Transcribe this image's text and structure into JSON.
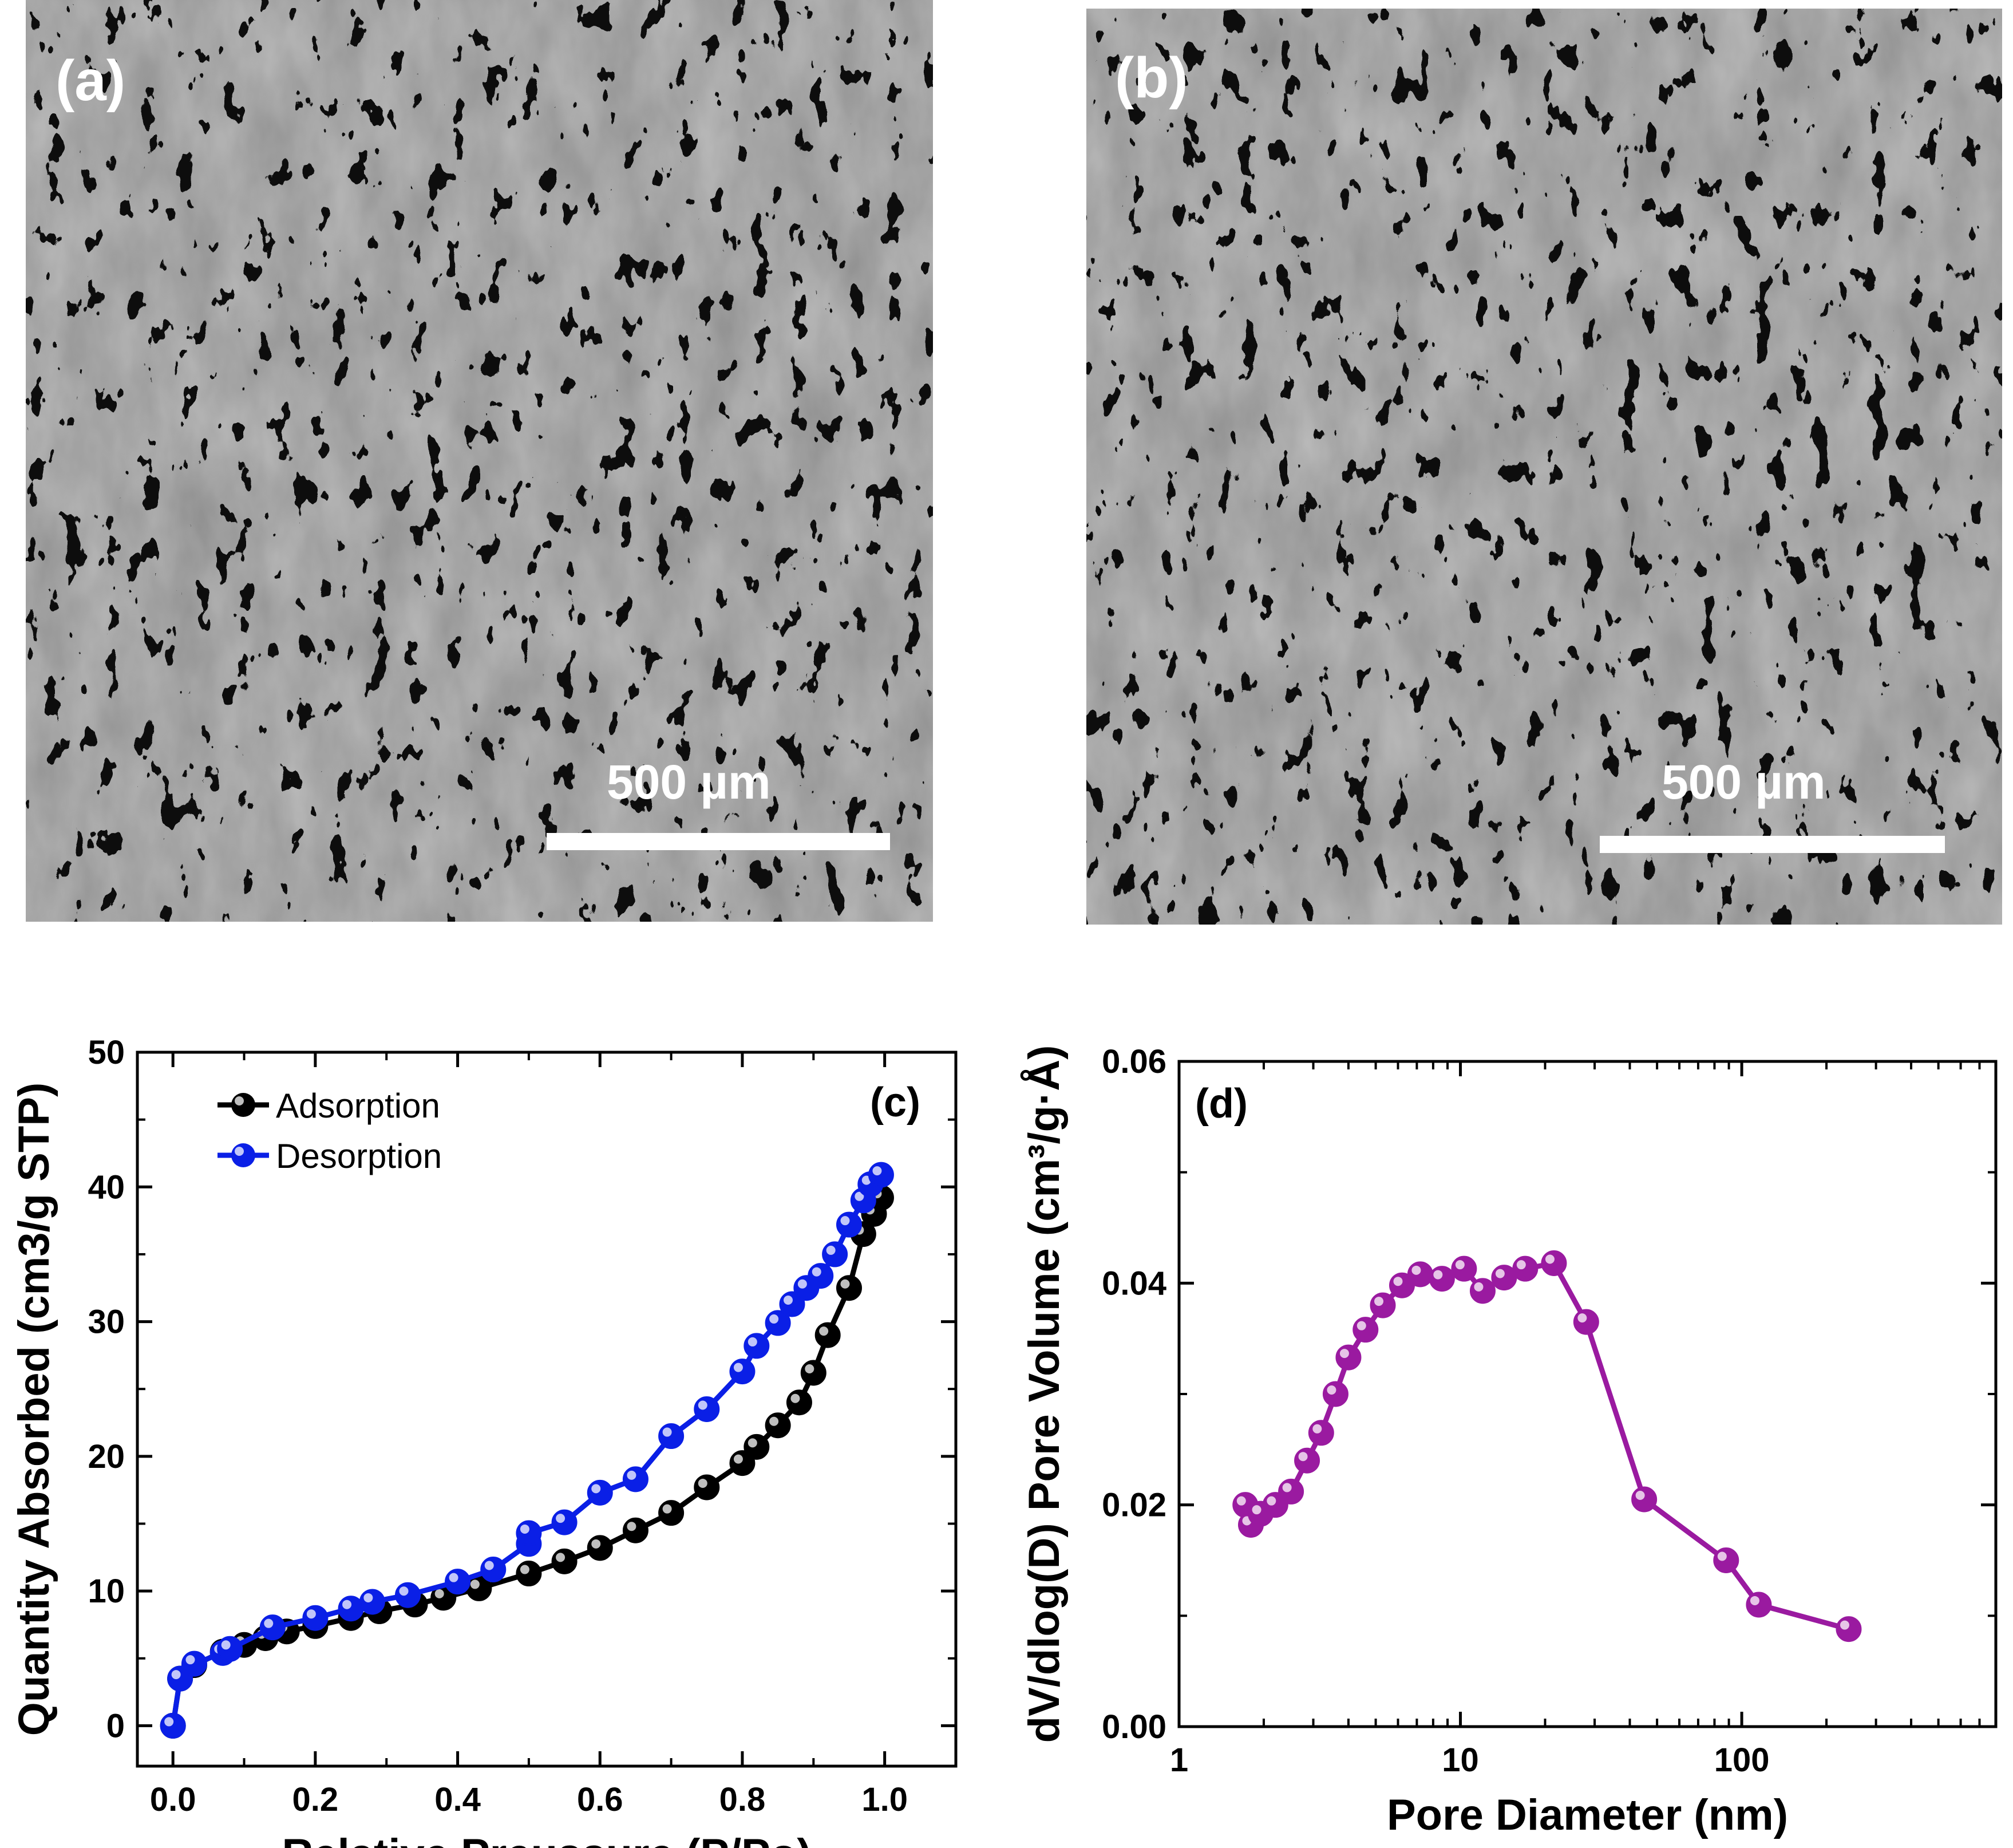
{
  "panels": {
    "a": {
      "label": "(a)",
      "scale_bar": "500 µm"
    },
    "b": {
      "label": "(b)",
      "scale_bar": "500 µm"
    },
    "c": {
      "label": "(c)"
    },
    "d": {
      "label": "(d)"
    }
  },
  "chart_data": [
    {
      "type": "line",
      "panel": "c",
      "xlabel": "Relative Preussure (P/Po)",
      "ylabel": "Quantity Absorbed (cm3/g STP)",
      "xlim": [
        -0.05,
        1.1
      ],
      "ylim": [
        -3,
        50
      ],
      "xticks": [
        0.0,
        0.2,
        0.4,
        0.6,
        0.8,
        1.0
      ],
      "xtick_labels": [
        "0.0",
        "0.2",
        "0.4",
        "0.6",
        "0.8",
        "1.0"
      ],
      "yticks": [
        0,
        10,
        20,
        30,
        40,
        50
      ],
      "ytick_labels": [
        "0",
        "10",
        "20",
        "30",
        "40",
        "50"
      ],
      "legend_position": "top-left",
      "series": [
        {
          "name": "Adsorption",
          "color": "#000000",
          "x": [
            0.0,
            0.01,
            0.03,
            0.07,
            0.1,
            0.13,
            0.16,
            0.2,
            0.25,
            0.29,
            0.34,
            0.38,
            0.43,
            0.5,
            0.55,
            0.6,
            0.65,
            0.7,
            0.75,
            0.8,
            0.82,
            0.85,
            0.88,
            0.9,
            0.92,
            0.95,
            0.97,
            0.985,
            0.995
          ],
          "y": [
            0,
            3.5,
            4.5,
            5.5,
            6.0,
            6.5,
            7.0,
            7.4,
            8.0,
            8.5,
            9.0,
            9.5,
            10.2,
            11.3,
            12.2,
            13.2,
            14.5,
            15.8,
            17.7,
            19.5,
            20.7,
            22.3,
            24.0,
            26.2,
            29.0,
            32.5,
            36.5,
            38.0,
            39.2
          ]
        },
        {
          "name": "Desorption",
          "color": "#0a1fe6",
          "x": [
            0.0,
            0.01,
            0.03,
            0.07,
            0.08,
            0.14,
            0.2,
            0.25,
            0.28,
            0.33,
            0.4,
            0.45,
            0.5,
            0.5,
            0.55,
            0.6,
            0.65,
            0.7,
            0.75,
            0.8,
            0.82,
            0.85,
            0.87,
            0.89,
            0.91,
            0.93,
            0.95,
            0.97,
            0.98,
            0.995
          ],
          "y": [
            0,
            3.5,
            4.6,
            5.4,
            5.7,
            7.3,
            8.0,
            8.7,
            9.2,
            9.7,
            10.7,
            11.6,
            13.5,
            14.3,
            15.1,
            17.3,
            18.3,
            21.5,
            23.5,
            26.3,
            28.2,
            29.9,
            31.3,
            32.5,
            33.4,
            35.0,
            37.2,
            39.0,
            40.2,
            40.9
          ]
        }
      ]
    },
    {
      "type": "line",
      "panel": "d",
      "xlabel": "Pore Diameter (nm)",
      "ylabel": "dV/dlog(D) Pore Volume (cm³/g·Å)",
      "xscale": "log",
      "xlim": [
        1,
        800
      ],
      "ylim": [
        0,
        0.06
      ],
      "xticks": [
        1,
        10,
        100
      ],
      "xtick_labels": [
        "1",
        "10",
        "100"
      ],
      "yticks": [
        0.0,
        0.02,
        0.04,
        0.06
      ],
      "ytick_labels": [
        "0.00",
        "0.02",
        "0.04",
        "0.06"
      ],
      "series": [
        {
          "color": "#9a1aa0",
          "x": [
            1.72,
            1.8,
            1.95,
            2.2,
            2.5,
            2.85,
            3.2,
            3.6,
            4.0,
            4.6,
            5.3,
            6.2,
            7.2,
            8.6,
            10.3,
            12.0,
            14.3,
            17.0,
            21.5,
            28.0,
            45.0,
            88.0,
            115.0,
            240.0
          ],
          "y": [
            0.02,
            0.0182,
            0.0192,
            0.02,
            0.0212,
            0.024,
            0.0265,
            0.03,
            0.0333,
            0.0358,
            0.038,
            0.0398,
            0.0408,
            0.0404,
            0.0413,
            0.0393,
            0.0405,
            0.0413,
            0.0418,
            0.0365,
            0.0205,
            0.015,
            0.011,
            0.0088
          ]
        }
      ]
    }
  ]
}
